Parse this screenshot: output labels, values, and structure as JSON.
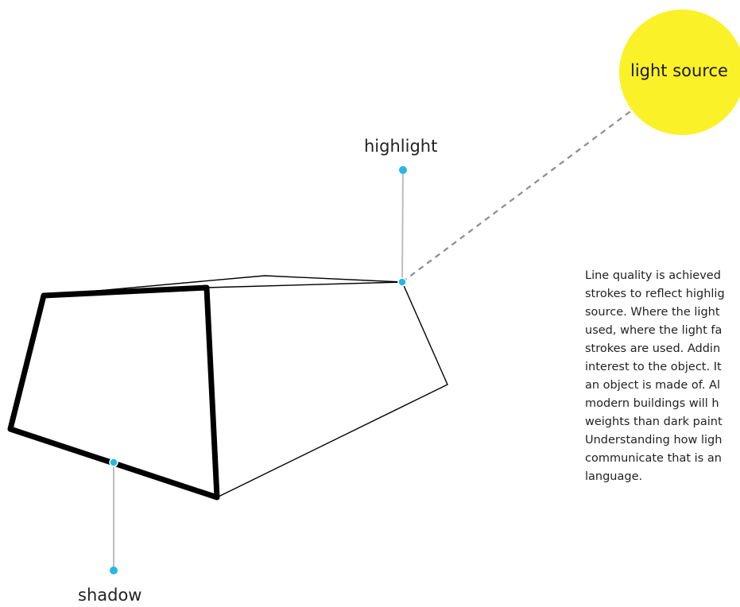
{
  "labels": {
    "highlight": "highlight",
    "shadow": "shadow",
    "light_source": "light source"
  },
  "description_lines": [
    "Line quality is achieved",
    "strokes to reflect highlig",
    "source. Where the light",
    "used, where the light fa",
    "strokes are used. Addin",
    "interest to the object. It",
    "an object is made of. Al",
    "modern buildings will h",
    "weights than dark paint",
    "Understanding how ligh",
    "communicate that is an",
    "language."
  ],
  "colors": {
    "light_source_fill": "#fbf129",
    "marker_dot": "#26b8e3",
    "leader_line": "#bdbdbd",
    "dashed_ray": "#8c8c8c",
    "object_stroke": "#000000"
  }
}
